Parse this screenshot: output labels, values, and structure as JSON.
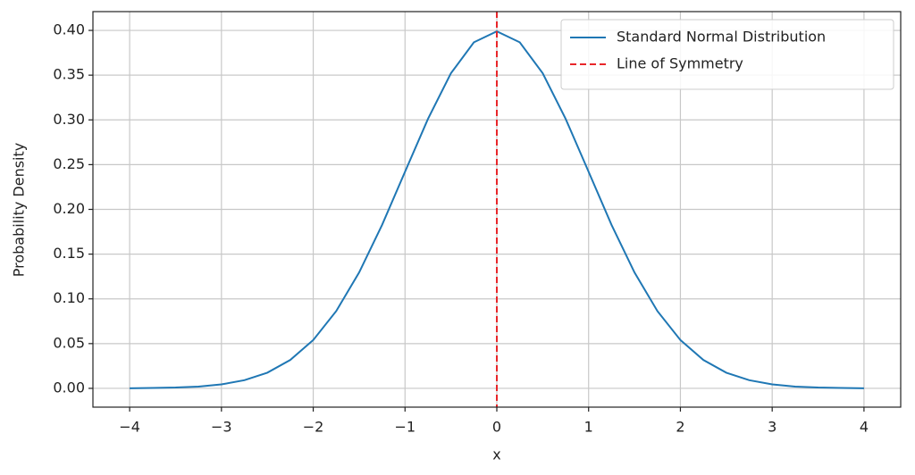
{
  "chart_data": {
    "type": "line",
    "xlabel": "x",
    "ylabel": "Probability Density",
    "xlim": [
      -4.4,
      4.4
    ],
    "ylim": [
      -0.021,
      0.421
    ],
    "xticks": [
      {
        "value": -4,
        "label": "−4"
      },
      {
        "value": -3,
        "label": "−3"
      },
      {
        "value": -2,
        "label": "−2"
      },
      {
        "value": -1,
        "label": "−1"
      },
      0,
      1,
      2,
      3,
      4
    ],
    "yticks": [
      {
        "value": 0,
        "label": "0.00"
      },
      {
        "value": 0.05,
        "label": "0.05"
      },
      {
        "value": 0.1,
        "label": "0.10"
      },
      {
        "value": 0.15,
        "label": "0.15"
      },
      {
        "value": 0.2,
        "label": "0.20"
      },
      {
        "value": 0.25,
        "label": "0.25"
      },
      {
        "value": 0.3,
        "label": "0.30"
      },
      {
        "value": 0.35,
        "label": "0.35"
      },
      {
        "value": 0.4,
        "label": "0.40"
      }
    ],
    "grid": true,
    "legend": "upper right",
    "series": [
      {
        "name": "Standard Normal Distribution",
        "color": "#1f77b4",
        "x": [
          -4,
          -3.75,
          -3.5,
          -3.25,
          -3,
          -2.75,
          -2.5,
          -2.25,
          -2,
          -1.75,
          -1.5,
          -1.25,
          -1,
          -0.75,
          -0.5,
          -0.25,
          0,
          0.25,
          0.5,
          0.75,
          1,
          1.25,
          1.5,
          1.75,
          2,
          2.25,
          2.5,
          2.75,
          3,
          3.25,
          3.5,
          3.75,
          4
        ],
        "values": [
          0.0001,
          0.0004,
          0.0009,
          0.002,
          0.0044,
          0.0091,
          0.0175,
          0.0317,
          0.054,
          0.0863,
          0.1295,
          0.1826,
          0.242,
          0.3011,
          0.3521,
          0.3867,
          0.3989,
          0.3867,
          0.3521,
          0.3011,
          0.242,
          0.1826,
          0.1295,
          0.0863,
          0.054,
          0.0317,
          0.0175,
          0.0091,
          0.0044,
          0.002,
          0.0009,
          0.0004,
          0.0001
        ]
      }
    ],
    "vlines": [
      {
        "name": "Line of Symmetry",
        "color": "#e8262a",
        "x": 0,
        "linestyle": "dashed"
      }
    ]
  }
}
